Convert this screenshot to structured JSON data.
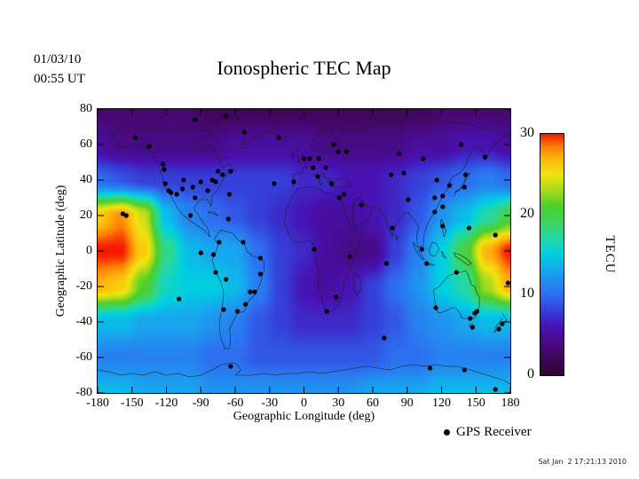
{
  "header": {
    "date": "01/03/10",
    "time": "00:55 UT",
    "title": "Ionospheric TEC Map"
  },
  "axes": {
    "x_label": "Geographic Longitude (deg)",
    "y_label": "Geographic Latitude (deg)",
    "x_ticks": [
      -180,
      -150,
      -120,
      -90,
      -60,
      -30,
      0,
      30,
      60,
      90,
      120,
      150,
      180
    ],
    "y_ticks": [
      80,
      60,
      40,
      20,
      0,
      -20,
      -40,
      -60,
      -80
    ]
  },
  "colorbar": {
    "ticks": [
      30,
      20,
      10,
      0
    ],
    "unit_label": "TECU",
    "min": 0,
    "max": 30
  },
  "legend": {
    "marker_icon": "gps-receiver-dot",
    "label": "GPS Receiver"
  },
  "footer": {
    "timestamp": "Sat Jan  2 17:21:13 2010"
  },
  "colors": {
    "background": "#ffffff",
    "frame": "#000000",
    "gps_dot": "#000000",
    "coastline": "#1c1c1c"
  },
  "chart_data": {
    "type": "heatmap",
    "title": "Ionospheric TEC Map",
    "xlabel": "Geographic Longitude (deg)",
    "ylabel": "Geographic Latitude (deg)",
    "xlim": [
      -180,
      180
    ],
    "ylim": [
      -80,
      80
    ],
    "value_unit": "TECU",
    "value_range": [
      0,
      30
    ],
    "grid_lons": [
      -180,
      -160,
      -140,
      -120,
      -100,
      -80,
      -60,
      -40,
      -20,
      0,
      20,
      40,
      60,
      80,
      100,
      120,
      140,
      160,
      180
    ],
    "grid_lats": [
      80,
      60,
      40,
      20,
      0,
      -20,
      -40,
      -60,
      -80
    ],
    "tec_grid": [
      [
        3,
        3,
        3,
        3,
        3,
        2,
        2,
        2,
        2,
        2,
        2,
        2,
        2,
        2,
        2,
        3,
        3,
        3,
        3
      ],
      [
        5,
        4,
        4,
        4,
        4,
        4,
        5,
        5,
        5,
        5,
        4,
        4,
        4,
        4,
        5,
        5,
        6,
        6,
        5
      ],
      [
        10,
        9,
        8,
        8,
        8,
        8,
        8,
        8,
        8,
        7,
        7,
        6,
        6,
        7,
        8,
        9,
        10,
        11,
        10
      ],
      [
        26,
        28,
        24,
        14,
        11,
        10,
        9,
        8,
        7,
        6,
        5,
        5,
        6,
        7,
        9,
        12,
        14,
        17,
        20
      ],
      [
        30,
        30,
        26,
        18,
        14,
        13,
        13,
        10,
        8,
        7,
        5,
        4,
        4,
        8,
        11,
        15,
        20,
        27,
        30
      ],
      [
        27,
        26,
        21,
        16,
        15,
        15,
        14,
        11,
        8,
        6,
        5,
        6,
        8,
        10,
        12,
        15,
        17,
        23,
        27
      ],
      [
        14,
        14,
        13,
        13,
        13,
        12,
        11,
        9,
        8,
        7,
        7,
        7,
        8,
        9,
        11,
        12,
        13,
        14,
        14
      ],
      [
        11,
        11,
        11,
        11,
        11,
        10,
        10,
        9,
        9,
        9,
        9,
        9,
        9,
        10,
        10,
        11,
        11,
        11,
        11
      ],
      [
        14,
        14,
        13,
        13,
        13,
        12,
        12,
        12,
        12,
        12,
        12,
        12,
        13,
        13,
        13,
        14,
        14,
        14,
        14
      ]
    ],
    "colormap": [
      [
        0,
        "#2e0431"
      ],
      [
        3,
        "#47076e"
      ],
      [
        6,
        "#4812b4"
      ],
      [
        8,
        "#3540d8"
      ],
      [
        10,
        "#2e6ff0"
      ],
      [
        13,
        "#18a6ee"
      ],
      [
        15,
        "#00cfe2"
      ],
      [
        17,
        "#22d8a8"
      ],
      [
        19,
        "#3cd463"
      ],
      [
        21,
        "#4ccf2a"
      ],
      [
        23,
        "#a6da1e"
      ],
      [
        25,
        "#f2e40e"
      ],
      [
        27,
        "#fdb40c"
      ],
      [
        28.5,
        "#fd7d05"
      ],
      [
        30,
        "#f51803"
      ]
    ],
    "gps_receivers": [
      [
        -147,
        64
      ],
      [
        -135,
        59
      ],
      [
        -123,
        49
      ],
      [
        -122,
        46
      ],
      [
        -121,
        38
      ],
      [
        -118,
        34
      ],
      [
        -116,
        33
      ],
      [
        -111,
        32
      ],
      [
        -106,
        35
      ],
      [
        -105,
        40
      ],
      [
        -97,
        36
      ],
      [
        -95,
        30
      ],
      [
        -90,
        39
      ],
      [
        -84,
        34
      ],
      [
        -80,
        40
      ],
      [
        -77,
        39
      ],
      [
        -75,
        45
      ],
      [
        -71,
        43
      ],
      [
        -64,
        45
      ],
      [
        -95,
        74
      ],
      [
        -68,
        76
      ],
      [
        -52,
        67
      ],
      [
        -22,
        64
      ],
      [
        -158,
        21
      ],
      [
        -155,
        20
      ],
      [
        -65,
        32
      ],
      [
        -26,
        38
      ],
      [
        -66,
        18
      ],
      [
        -99,
        20
      ],
      [
        -74,
        5
      ],
      [
        -79,
        -2
      ],
      [
        -77,
        -12
      ],
      [
        -68,
        -16
      ],
      [
        -70,
        -33
      ],
      [
        -58,
        -34
      ],
      [
        -51,
        -30
      ],
      [
        -47,
        -23
      ],
      [
        -43,
        -23
      ],
      [
        -38,
        -13
      ],
      [
        -38,
        -4
      ],
      [
        -53,
        5
      ],
      [
        -90,
        -1
      ],
      [
        -109,
        -27
      ],
      [
        -9,
        39
      ],
      [
        0,
        52
      ],
      [
        5,
        52
      ],
      [
        8,
        47
      ],
      [
        12,
        42
      ],
      [
        13,
        52
      ],
      [
        19,
        47
      ],
      [
        24,
        38
      ],
      [
        26,
        60
      ],
      [
        30,
        56
      ],
      [
        37,
        56
      ],
      [
        28,
        -26
      ],
      [
        20,
        -34
      ],
      [
        40,
        -3
      ],
      [
        35,
        32
      ],
      [
        9,
        1
      ],
      [
        31,
        30
      ],
      [
        50,
        26
      ],
      [
        77,
        13
      ],
      [
        72,
        -7
      ],
      [
        76,
        43
      ],
      [
        87,
        44
      ],
      [
        83,
        55
      ],
      [
        104,
        52
      ],
      [
        137,
        60
      ],
      [
        158,
        53
      ],
      [
        91,
        29
      ],
      [
        114,
        30
      ],
      [
        116,
        40
      ],
      [
        121,
        31
      ],
      [
        127,
        37
      ],
      [
        140,
        36
      ],
      [
        141,
        43
      ],
      [
        121,
        25
      ],
      [
        114,
        22
      ],
      [
        103,
        1
      ],
      [
        107,
        -7
      ],
      [
        121,
        14
      ],
      [
        144,
        13
      ],
      [
        167,
        9
      ],
      [
        115,
        -32
      ],
      [
        133,
        -12
      ],
      [
        149,
        -35
      ],
      [
        151,
        -34
      ],
      [
        145,
        -38
      ],
      [
        147,
        -43
      ],
      [
        178,
        -18
      ],
      [
        173,
        -41
      ],
      [
        170,
        -44
      ],
      [
        70,
        -49
      ],
      [
        -64,
        -65
      ],
      [
        110,
        -66
      ],
      [
        167,
        -78
      ],
      [
        140,
        -67
      ]
    ]
  }
}
